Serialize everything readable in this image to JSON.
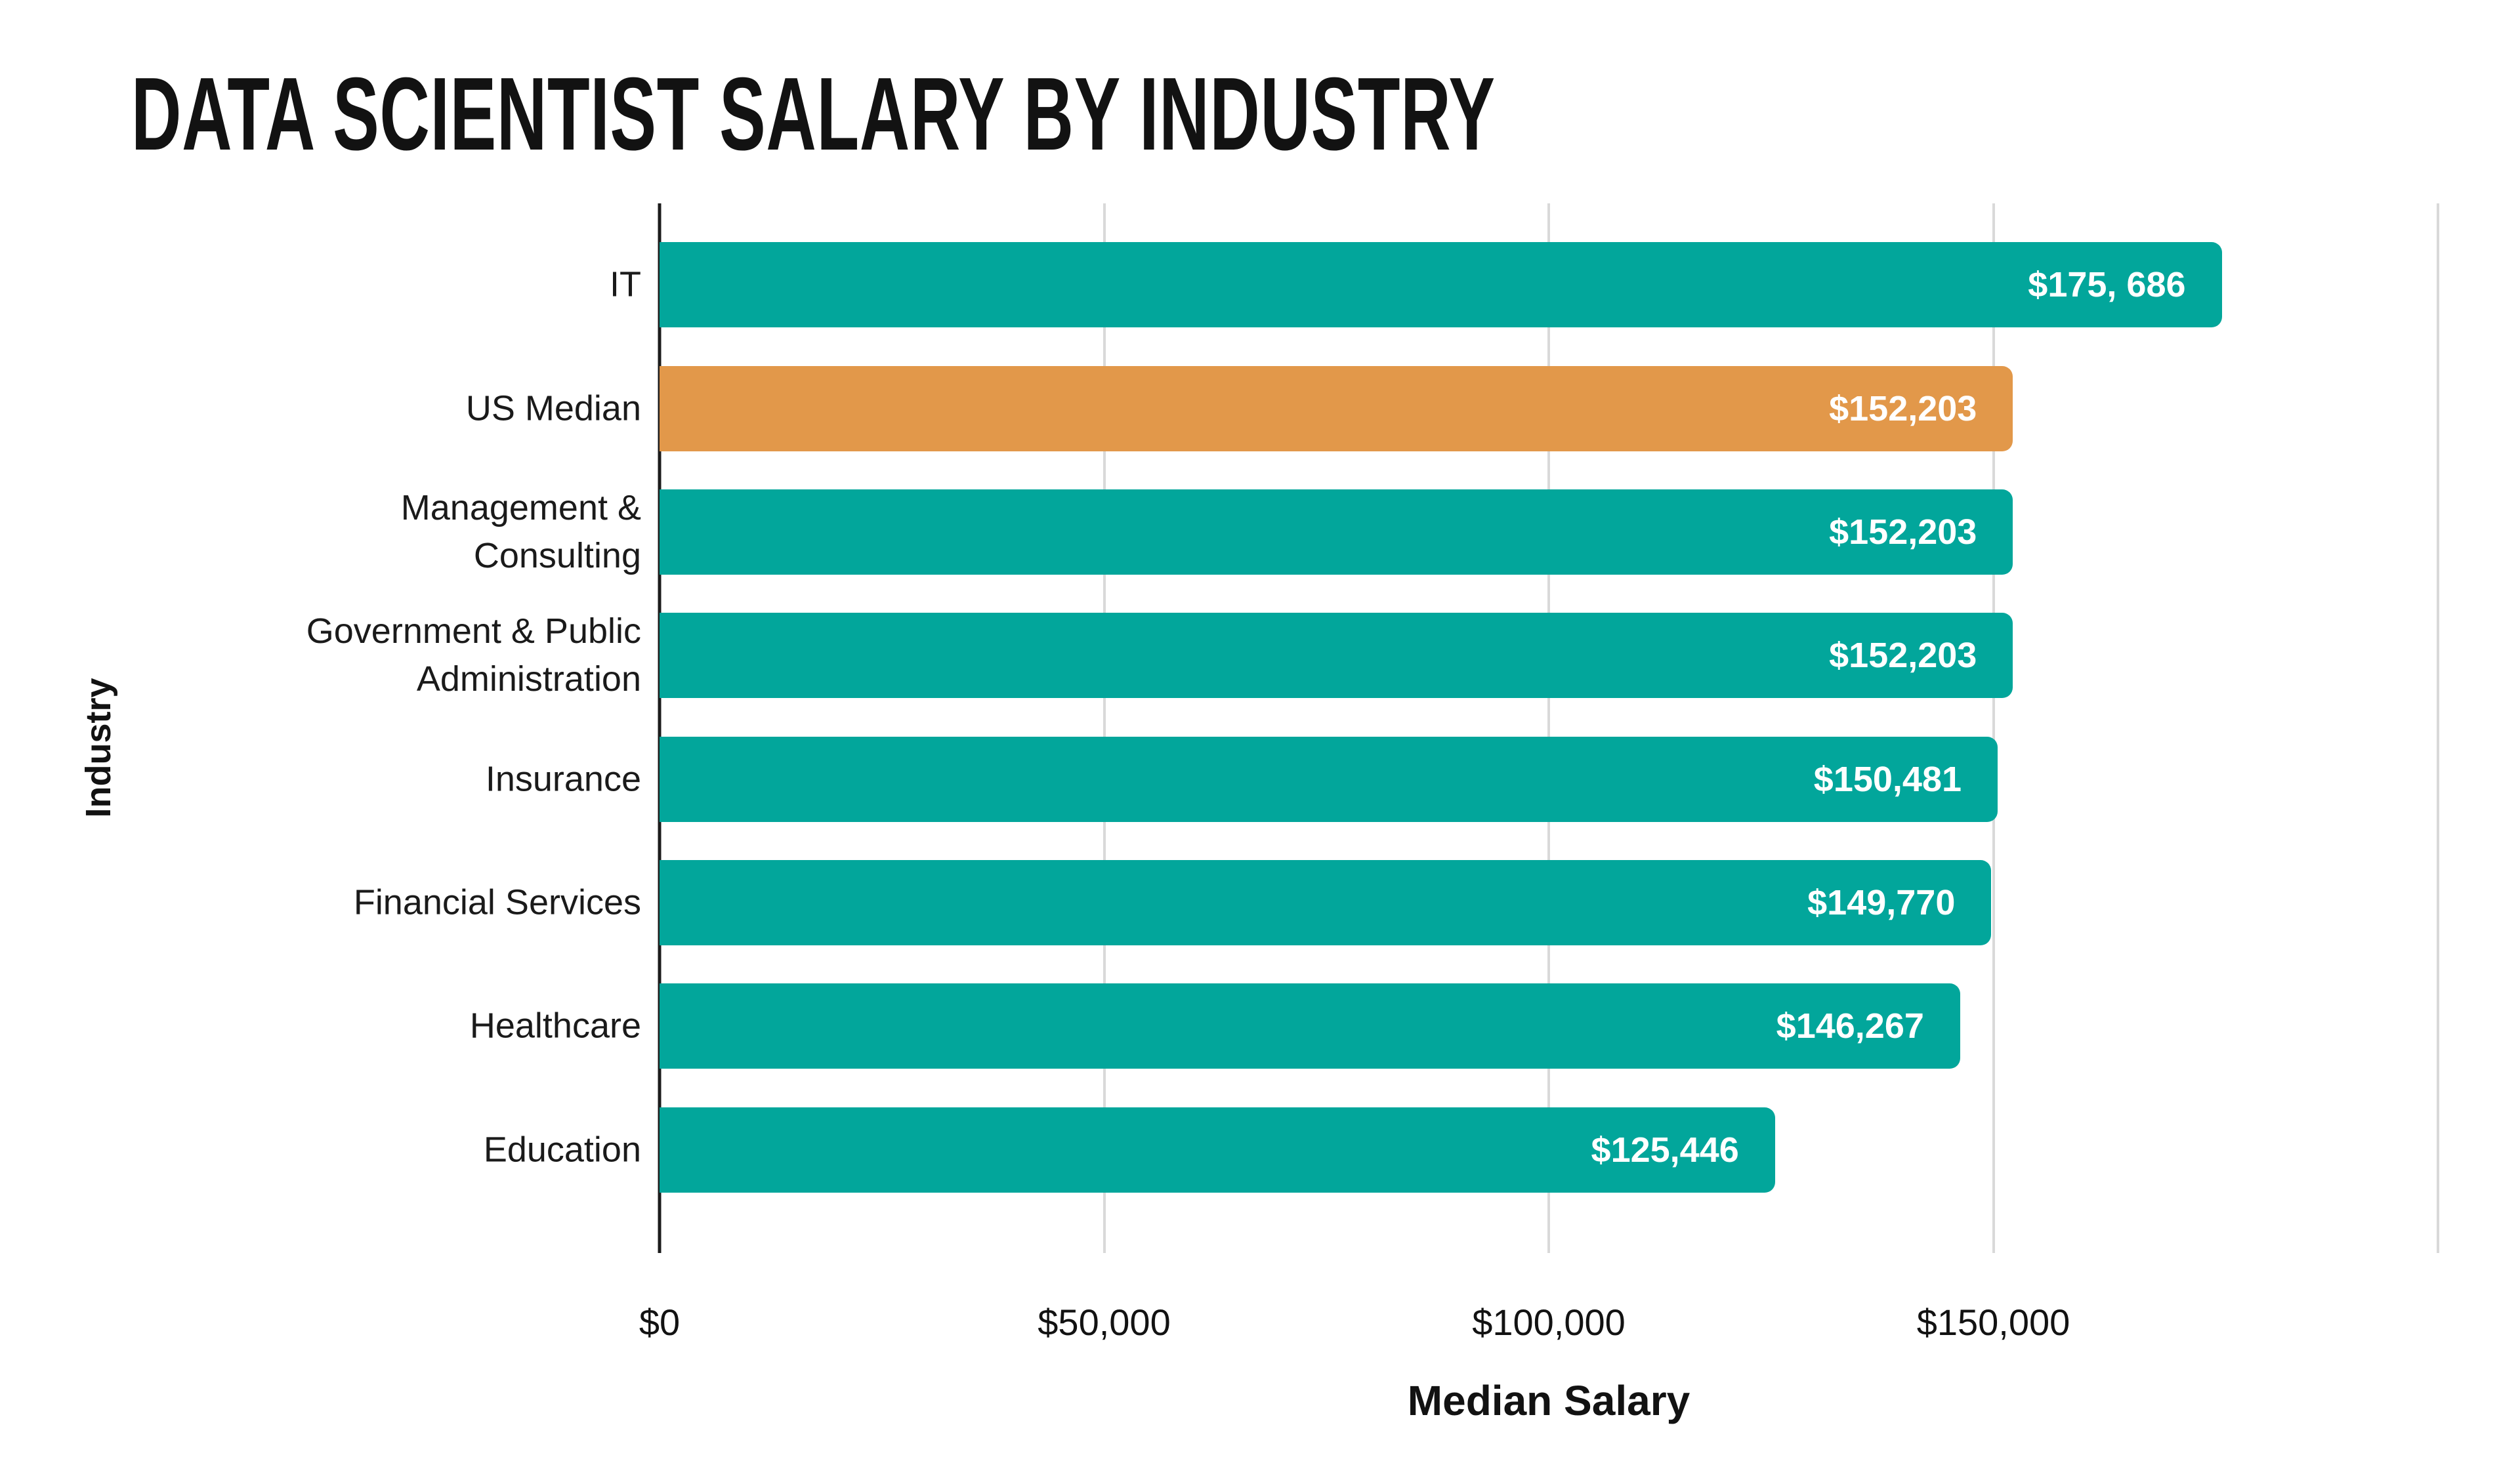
{
  "page": {
    "background": "#FFFFFF"
  },
  "chart_data": {
    "type": "bar",
    "orientation": "horizontal",
    "title": "DATA SCIENTIST SALARY BY INDUSTRY",
    "xlabel": "Median Salary",
    "ylabel": "Industry",
    "categories": [
      "IT",
      "US Median",
      "Management &\nConsulting",
      "Government & Public\nAdministration",
      "Insurance",
      "Financial Services",
      "Healthcare",
      "Education"
    ],
    "values": [
      175686,
      152203,
      152203,
      152203,
      150481,
      149770,
      146267,
      125446
    ],
    "bar_labels": [
      "$175, 686",
      "$152,203",
      "$152,203",
      "$152,203",
      "$150,481",
      "$149,770",
      "$146,267",
      "$125,446"
    ],
    "highlight_index": 1,
    "xlim": [
      0,
      200000
    ],
    "x_ticks": [
      {
        "value": 0,
        "label": "$0"
      },
      {
        "value": 50000,
        "label": "$50,000"
      },
      {
        "value": 100000,
        "label": "$100,000"
      },
      {
        "value": 150000,
        "label": "$150,000"
      },
      {
        "value": 200000,
        "label": ""
      }
    ],
    "grid": true,
    "legend": "none",
    "colors": {
      "bar": "#02A69B",
      "highlight_bar": "#E2984A",
      "gridline": "#D9D9D9",
      "axis_line": "#1C1C1C",
      "bar_value_text": "#FFFFFF",
      "text": "#121212"
    }
  }
}
